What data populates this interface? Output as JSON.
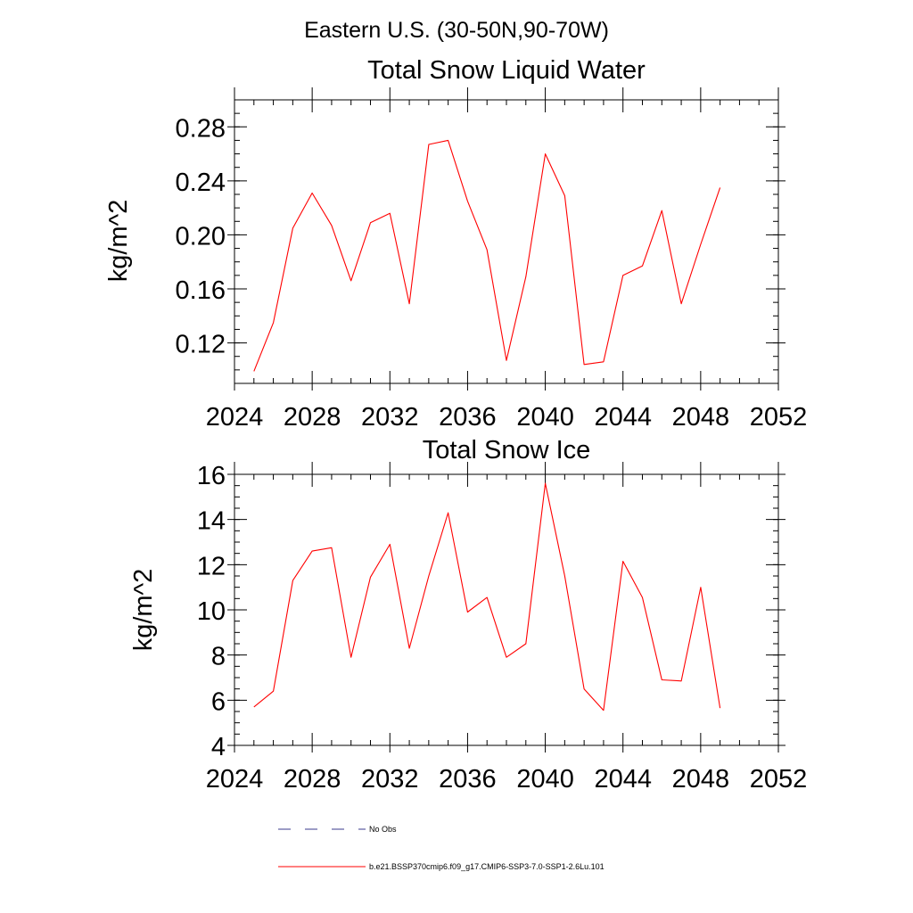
{
  "figure": {
    "suptitle": "Eastern U.S. (30-50N,90-70W)"
  },
  "chart_data": [
    {
      "type": "line",
      "title": "Total Snow Liquid Water",
      "xlabel": "",
      "ylabel": "kg/m^2",
      "xlim": [
        2024,
        2052
      ],
      "ylim": [
        0.09,
        0.3
      ],
      "xticks": [
        "2024",
        "2028",
        "2032",
        "2036",
        "2040",
        "2044",
        "2048",
        "2052"
      ],
      "yticks": [
        "0.12",
        "0.16",
        "0.20",
        "0.24",
        "0.28"
      ],
      "series": [
        {
          "name": "b.e21.BSSP370cmip6.f09_g17.CMIP6-SSP3-7.0-SSP1-2.6Lu.101",
          "color": "#ff0000",
          "x": [
            2025,
            2026,
            2027,
            2028,
            2029,
            2030,
            2031,
            2032,
            2033,
            2034,
            2035,
            2036,
            2037,
            2038,
            2039,
            2040,
            2041,
            2042,
            2043,
            2044,
            2045,
            2046,
            2047,
            2048,
            2049
          ],
          "y": [
            0.099,
            0.135,
            0.205,
            0.231,
            0.207,
            0.166,
            0.209,
            0.216,
            0.149,
            0.267,
            0.27,
            0.225,
            0.189,
            0.107,
            0.169,
            0.26,
            0.229,
            0.104,
            0.106,
            0.17,
            0.177,
            0.218,
            0.149,
            0.193,
            0.235
          ]
        }
      ]
    },
    {
      "type": "line",
      "title": "Total Snow Ice",
      "xlabel": "",
      "ylabel": "kg/m^2",
      "xlim": [
        2024,
        2052
      ],
      "ylim": [
        4,
        16
      ],
      "xticks": [
        "2024",
        "2028",
        "2032",
        "2036",
        "2040",
        "2044",
        "2048",
        "2052"
      ],
      "yticks": [
        "4",
        "6",
        "8",
        "10",
        "12",
        "14",
        "16"
      ],
      "series": [
        {
          "name": "b.e21.BSSP370cmip6.f09_g17.CMIP6-SSP3-7.0-SSP1-2.6Lu.101",
          "color": "#ff0000",
          "x": [
            2025,
            2026,
            2027,
            2028,
            2029,
            2030,
            2031,
            2032,
            2033,
            2034,
            2035,
            2036,
            2037,
            2038,
            2039,
            2040,
            2041,
            2042,
            2043,
            2044,
            2045,
            2046,
            2047,
            2048,
            2049
          ],
          "y": [
            5.7,
            6.4,
            11.3,
            12.6,
            12.75,
            7.9,
            11.45,
            12.9,
            8.3,
            11.5,
            14.3,
            9.9,
            10.55,
            7.9,
            8.5,
            15.6,
            11.5,
            6.5,
            5.55,
            12.15,
            10.55,
            6.9,
            6.85,
            11.0,
            5.65
          ]
        }
      ]
    }
  ],
  "legend": [
    {
      "label": "No Obs",
      "style": "dashed",
      "color": "#3a3a8c"
    },
    {
      "label": "b.e21.BSSP370cmip6.f09_g17.CMIP6-SSP3-7.0-SSP1-2.6Lu.101",
      "style": "solid",
      "color": "#ff0000"
    }
  ]
}
